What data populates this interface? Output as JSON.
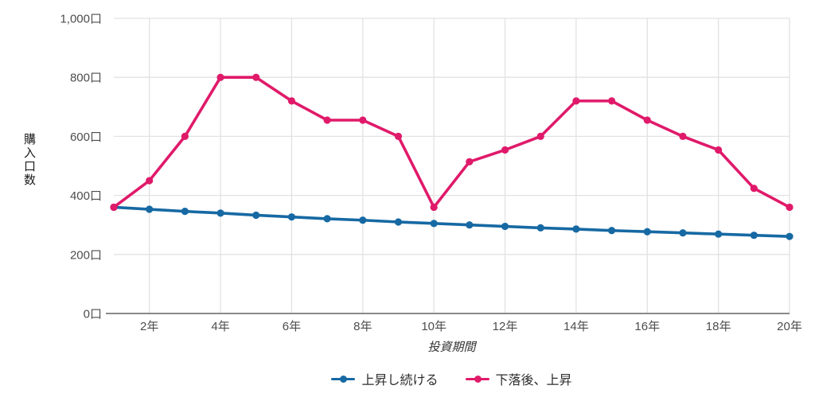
{
  "chart_data": {
    "type": "line",
    "title": "",
    "xlabel": "投資期間",
    "ylabel": "購入口数",
    "xlim": [
      1,
      20
    ],
    "ylim": [
      0,
      1000
    ],
    "grid": true,
    "legend_position": "bottom",
    "x": [
      1,
      2,
      3,
      4,
      5,
      6,
      7,
      8,
      9,
      10,
      11,
      12,
      13,
      14,
      15,
      16,
      17,
      18,
      19,
      20
    ],
    "x_ticks": [
      2,
      4,
      6,
      8,
      10,
      12,
      14,
      16,
      18,
      20
    ],
    "x_tick_labels": [
      "2年",
      "4年",
      "6年",
      "8年",
      "10年",
      "12年",
      "14年",
      "16年",
      "18年",
      "20年"
    ],
    "y_ticks": [
      0,
      200,
      400,
      600,
      800,
      1000
    ],
    "y_tick_labels": [
      "0口",
      "200口",
      "400口",
      "600口",
      "800口",
      "1,000口"
    ],
    "series": [
      {
        "name": "上昇し続ける",
        "color": "#1669a3",
        "values": [
          360,
          353,
          346,
          340,
          333,
          327,
          321,
          316,
          310,
          305,
          300,
          295,
          290,
          286,
          281,
          277,
          273,
          269,
          265,
          261
        ]
      },
      {
        "name": "下落後、上昇",
        "color": "#e01a6a",
        "values": [
          360,
          450,
          600,
          800,
          800,
          720,
          655,
          655,
          600,
          360,
          514,
          554,
          600,
          720,
          720,
          655,
          600,
          554,
          424,
          360
        ]
      }
    ]
  },
  "colors": {
    "background": "#ffffff",
    "gridline": "#e2e2e2",
    "axis_line": "#8a8a8a",
    "tick_text": "#4d4d4d"
  }
}
